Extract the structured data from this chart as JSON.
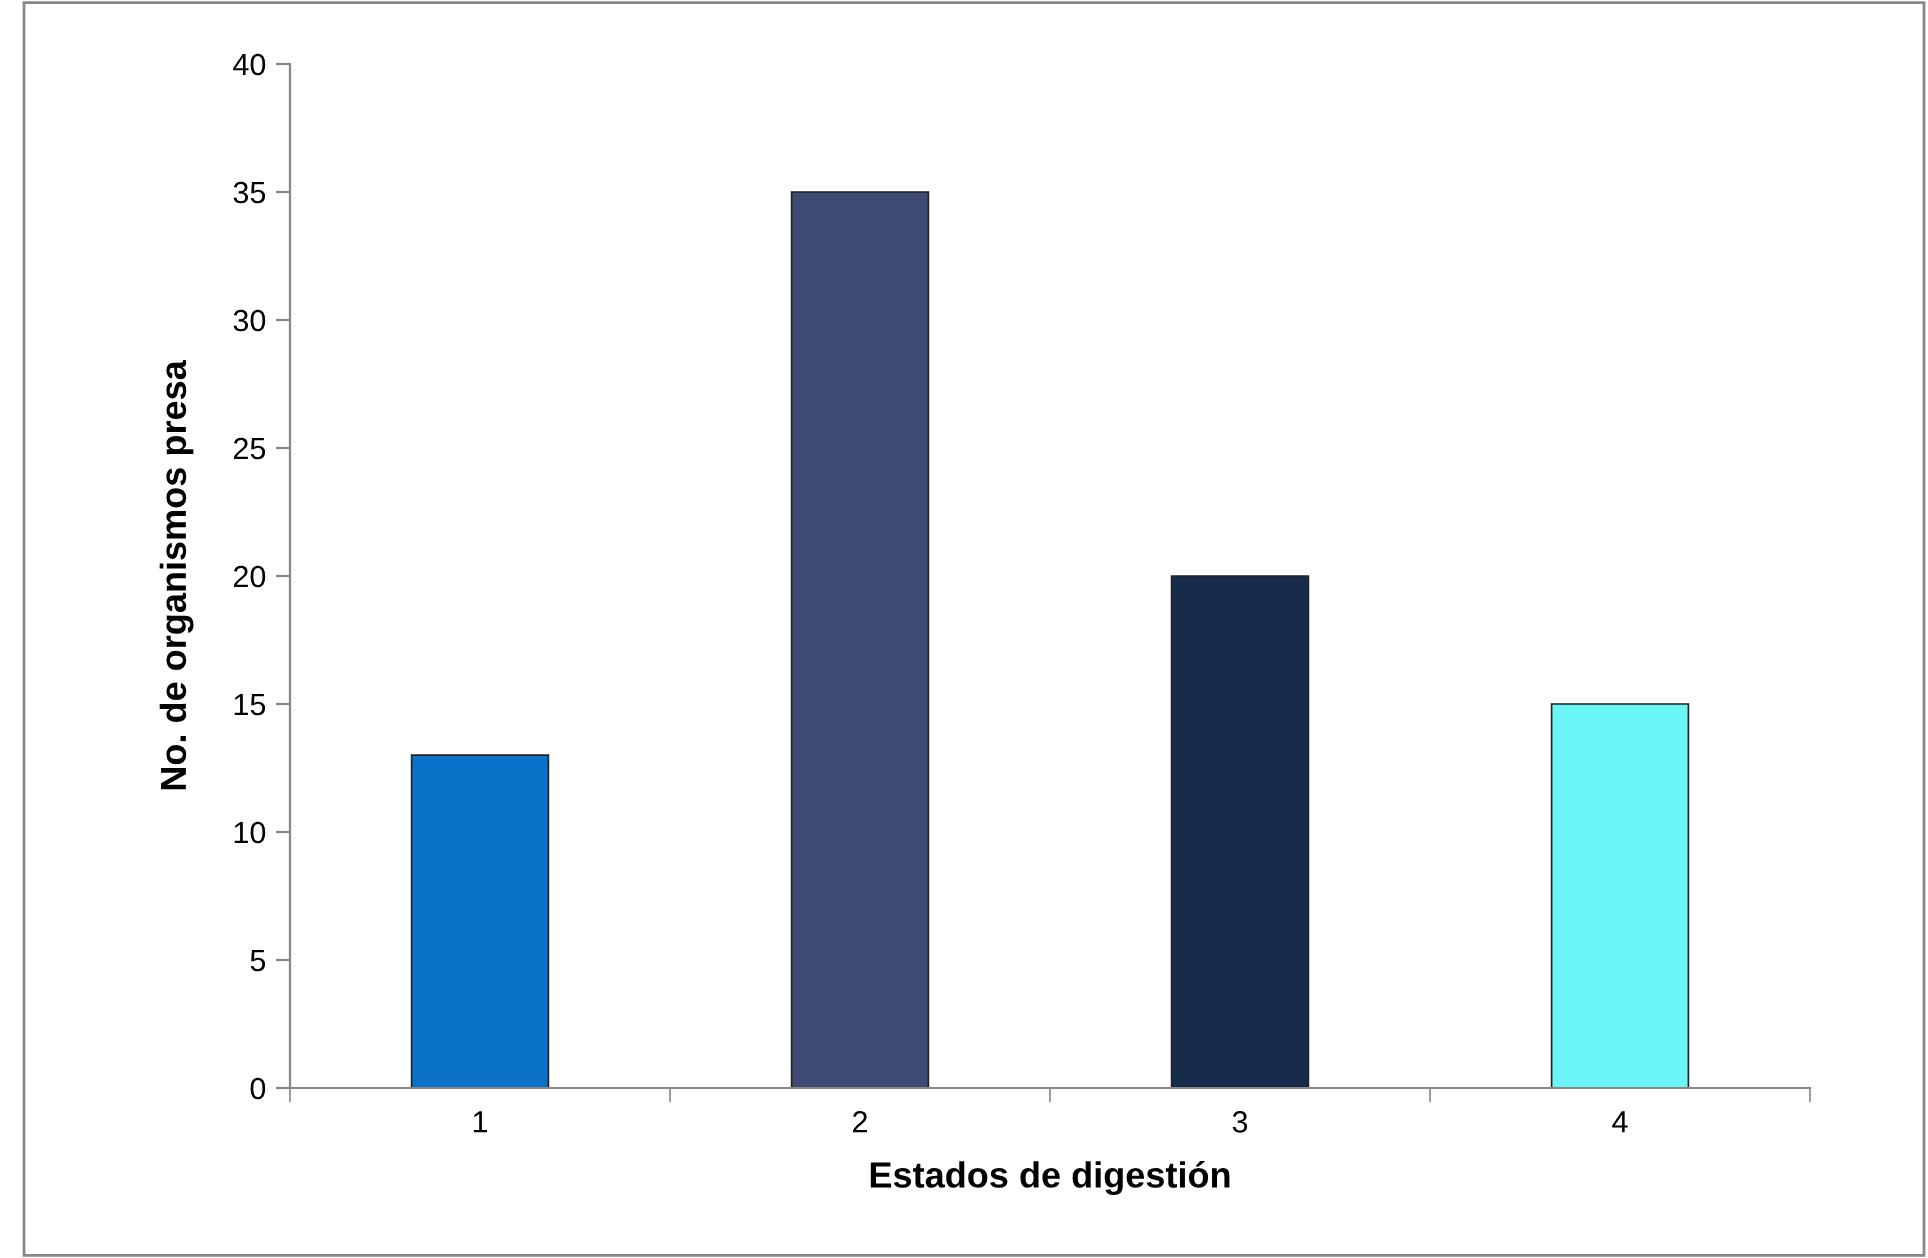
{
  "chart_data": {
    "type": "bar",
    "xlabel": "Estados de digestión",
    "ylabel": "No. de organismos presa",
    "categories": [
      "1",
      "2",
      "3",
      "4"
    ],
    "values": [
      13,
      35,
      20,
      15
    ],
    "colors": [
      "#0a72c8",
      "#3c4a74",
      "#172b4b",
      "#6af5f7"
    ],
    "ylim": [
      0,
      40
    ],
    "yticks": [
      0,
      5,
      10,
      15,
      20,
      25,
      30,
      35,
      40
    ],
    "grid": false,
    "legend": false
  }
}
